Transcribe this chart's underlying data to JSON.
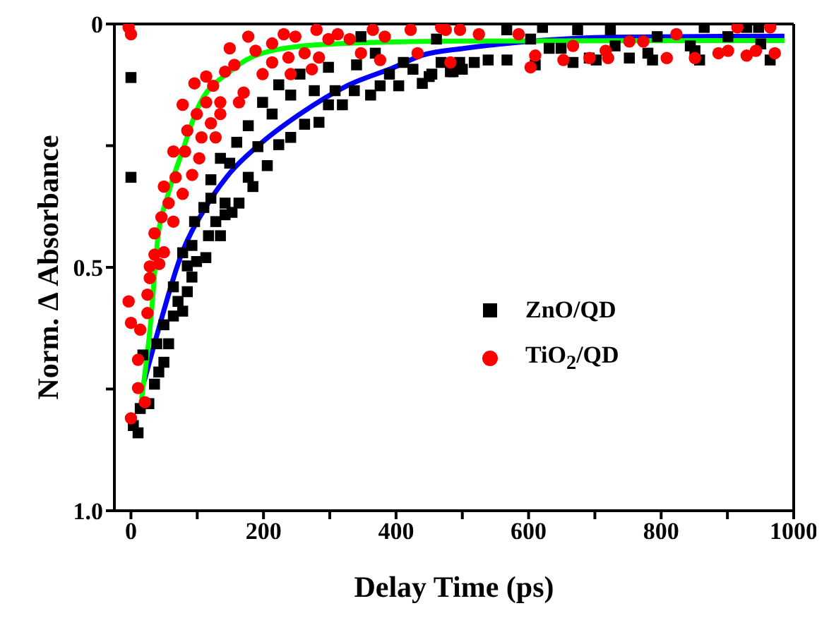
{
  "chart_data": {
    "type": "scatter",
    "xlabel": "Delay Time (ps)",
    "ylabel": "Norm. Δ Absorbance",
    "xlim": [
      -25,
      1000
    ],
    "ylim": [
      1.0,
      0
    ],
    "xticks": [
      0,
      {
        "value": 100,
        "label": null
      },
      200,
      {
        "value": 300,
        "label": null
      },
      400,
      {
        "value": 500,
        "label": null
      },
      600,
      {
        "value": 700,
        "label": null
      },
      800,
      {
        "value": 900,
        "label": null
      },
      1000
    ],
    "yticks": [
      0,
      {
        "value": 0.25,
        "label": null
      },
      0.5,
      {
        "value": 0.75,
        "label": null
      },
      {
        "value": 1,
        "label": "1.0"
      }
    ],
    "grid": false,
    "legend": "right",
    "series": [
      {
        "name": "ZnO/QD",
        "marker": "square",
        "color": "#000000",
        "x": [
          0,
          0,
          3.6,
          10.7,
          14,
          27,
          18,
          35.5,
          42,
          49.7,
          39,
          56.8,
          49.7,
          64,
          78,
          71,
          64,
          85,
          92,
          85,
          78,
          99,
          113,
          92,
          117,
          96,
          110,
          135,
          128,
          142,
          152.5,
          142,
          120.6,
          135,
          149,
          120.6,
          163,
          177,
          184,
          159.6,
          191.5,
          205.7,
          177,
          198.6,
          213,
          223,
          241,
          223,
          241,
          262,
          283.7,
          276.6,
          255,
          298,
          319,
          298,
          308,
          340.4,
          337,
          361.6,
          376,
          390,
          404,
          347,
          368.7,
          411,
          425.5,
          439.6,
          454,
          461,
          468,
          482,
          496,
          450,
          486,
          500,
          518,
          539,
          567.4,
          610,
          631,
          649,
          667,
          691.5,
          702,
          567,
          621,
          674,
          723.4,
          730.5,
          752,
          780,
          787,
          844,
          851,
          858,
          865,
          900.6,
          929,
          950.3,
          947,
          964.5,
          603,
          794
        ],
        "values": [
          0.11,
          0.315,
          0.825,
          0.84,
          0.79,
          0.78,
          0.68,
          0.74,
          0.715,
          0.695,
          0.657,
          0.657,
          0.618,
          0.6,
          0.59,
          0.57,
          0.54,
          0.55,
          0.52,
          0.497,
          0.47,
          0.488,
          0.48,
          0.455,
          0.435,
          0.406,
          0.377,
          0.435,
          0.406,
          0.392,
          0.387,
          0.368,
          0.32,
          0.276,
          0.286,
          0.358,
          0.368,
          0.315,
          0.334,
          0.243,
          0.252,
          0.291,
          0.209,
          0.161,
          0.185,
          0.248,
          0.233,
          0.125,
          0.146,
          0.206,
          0.202,
          0.137,
          0.103,
          0.166,
          0.166,
          0.089,
          0.137,
          0.084,
          0.137,
          0.146,
          0.127,
          0.103,
          0.127,
          0.026,
          0.06,
          0.079,
          0.093,
          0.122,
          0.103,
          0.031,
          0.079,
          0.098,
          0.079,
          0.108,
          0.098,
          0.093,
          0.079,
          0.074,
          0.074,
          0.084,
          0.05,
          0.05,
          0.079,
          0.07,
          0.074,
          0.012,
          0.007,
          0.012,
          0.012,
          0.045,
          0.07,
          0.06,
          0.074,
          0.045,
          0.055,
          0.074,
          0.007,
          0.026,
          0.007,
          0.041,
          0.007,
          0.074,
          0.031,
          0.026
        ]
      },
      {
        "name": "TiO$_{2}$/QD",
        "marker": "circle",
        "color": "#ff0000",
        "x": [
          -3.5,
          0,
          -3.5,
          0,
          0,
          10.7,
          10.7,
          21,
          14,
          24.9,
          24.9,
          28.4,
          28.4,
          35.5,
          35.5,
          42.6,
          46,
          49.7,
          56.8,
          49.7,
          64,
          67.4,
          78,
          64,
          81.6,
          92.3,
          85,
          103,
          99.3,
          106.4,
          78,
          113.5,
          120.6,
          127.7,
          134.8,
          95.8,
          113.5,
          124,
          134.8,
          142,
          156,
          149,
          163,
          170,
          177,
          188,
          198.6,
          213,
          213,
          230.5,
          237.6,
          248,
          241,
          262,
          273,
          280,
          283.7,
          298,
          312,
          330,
          347,
          365,
          376,
          383,
          422,
          432.5,
          475,
          482,
          468,
          496.5,
          525,
          585,
          603,
          610,
          652.5,
          667,
          692,
          716.3,
          720,
          752,
          773,
          808.5,
          851,
          886.5,
          901,
          929,
          943,
          971.5,
          964.5,
          915,
          823
        ],
        "values": [
          0.007,
          0.021,
          0.57,
          0.614,
          0.81,
          0.69,
          0.748,
          0.777,
          0.628,
          0.594,
          0.556,
          0.522,
          0.498,
          0.474,
          0.43,
          0.493,
          0.397,
          0.469,
          0.368,
          0.334,
          0.406,
          0.315,
          0.349,
          0.262,
          0.262,
          0.31,
          0.219,
          0.276,
          0.185,
          0.233,
          0.166,
          0.161,
          0.204,
          0.233,
          0.185,
          0.122,
          0.108,
          0.127,
          0.161,
          0.098,
          0.084,
          0.05,
          0.161,
          0.141,
          0.026,
          0.055,
          0.103,
          0.079,
          0.04,
          0.021,
          0.069,
          0.026,
          0.103,
          0.06,
          0.093,
          0.012,
          0.069,
          0.031,
          0.021,
          0.031,
          0.06,
          0.012,
          0.074,
          0.026,
          0.012,
          0.06,
          0.012,
          0.079,
          0.007,
          0.012,
          0.021,
          0.021,
          0.089,
          0.065,
          0.074,
          0.045,
          0.07,
          0.055,
          0.07,
          0.036,
          0.036,
          0.07,
          0.07,
          0.06,
          0.055,
          0.065,
          0.055,
          0.06,
          0.007,
          0.007,
          0.021
        ]
      },
      {
        "type": "line",
        "marker": "none",
        "line_style": "solid",
        "color": "#0000ff",
        "x": [
          20,
          41,
          76,
          112,
          147,
          198,
          255,
          326,
          397,
          440,
          503,
          582,
          724,
          986
        ],
        "values": [
          0.734,
          0.63,
          0.474,
          0.378,
          0.31,
          0.243,
          0.185,
          0.127,
          0.089,
          0.064,
          0.05,
          0.038,
          0.027,
          0.025
        ]
      },
      {
        "type": "line",
        "marker": "none",
        "line_style": "solid",
        "color": "#00ff00",
        "x": [
          16,
          28.5,
          41,
          55,
          78,
          100,
          149,
          198,
          290,
          500,
          986
        ],
        "values": [
          0.77,
          0.63,
          0.435,
          0.355,
          0.26,
          0.175,
          0.098,
          0.06,
          0.042,
          0.035,
          0.034
        ]
      }
    ]
  }
}
